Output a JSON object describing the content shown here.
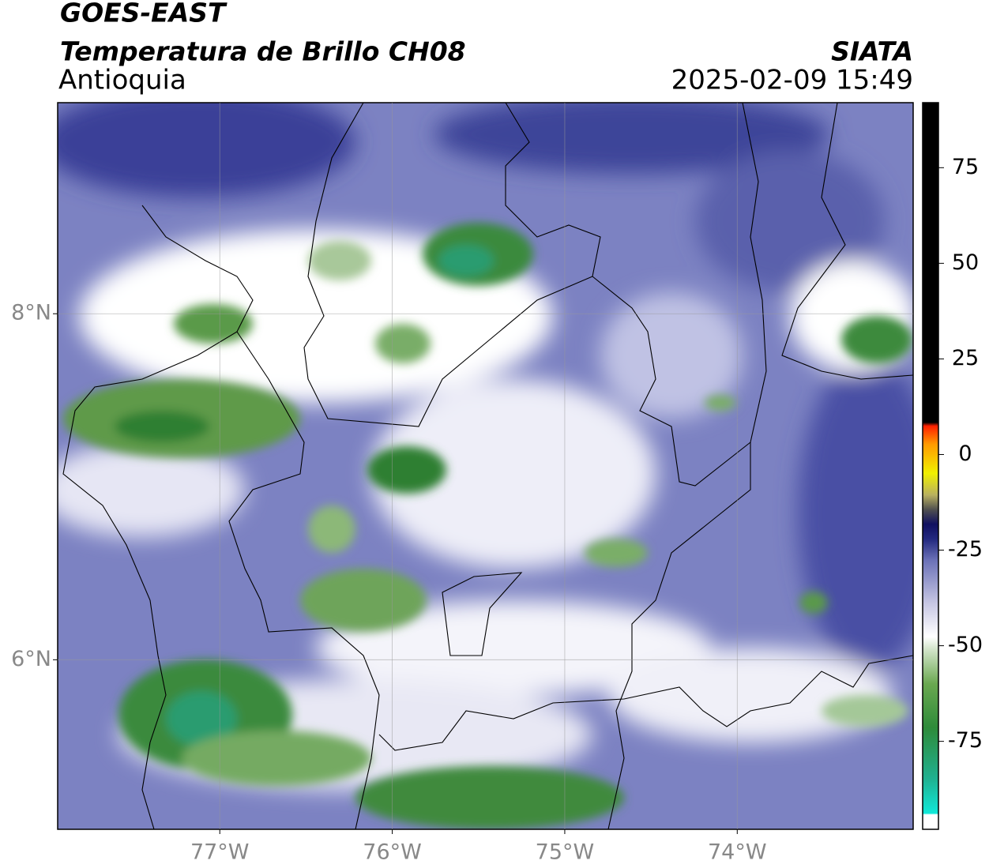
{
  "map": {
    "title": "GOES-EAST",
    "subtitle": "Temperatura de Brillo CH08",
    "region": "Antioquia",
    "source": "SIATA",
    "datetime": "2025-02-09 15:49",
    "xlim": [
      -77.94,
      -72.98
    ],
    "ylim": [
      5.02,
      9.22
    ],
    "xticks": [
      {
        "value": -77,
        "label": "77°W"
      },
      {
        "value": -76,
        "label": "76°W"
      },
      {
        "value": -75,
        "label": "75°W"
      },
      {
        "value": -74,
        "label": "74°W"
      }
    ],
    "yticks": [
      {
        "value": 8,
        "label": "8°N"
      },
      {
        "value": 6,
        "label": "6°N"
      }
    ],
    "grid": true,
    "colorbar": {
      "clim": [
        -98,
        92
      ],
      "ticks": [
        75,
        50,
        25,
        0,
        -25,
        -50,
        -75
      ]
    }
  }
}
